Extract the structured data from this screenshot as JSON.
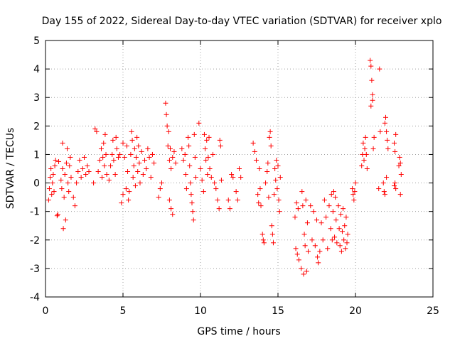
{
  "chart_data": {
    "type": "scatter",
    "title": "Day 155 of 2022, Sidereal Day-to-day VTEC variation (SDTVAR) for receiver xplo",
    "xlabel": "GPS time / hours",
    "ylabel": "SDTVAR / TECUs",
    "xlim": [
      0,
      25
    ],
    "ylim": [
      -4,
      5
    ],
    "xticks": [
      0,
      5,
      10,
      15,
      20,
      25
    ],
    "yticks": [
      -4,
      -3,
      -2,
      -1,
      0,
      1,
      2,
      3,
      4,
      5
    ],
    "xtick_labels": [
      "0",
      "5",
      "10",
      "15",
      "20",
      "25"
    ],
    "ytick_labels": [
      "-4",
      "-3",
      "-2",
      "-1",
      "0",
      "1",
      "2",
      "3",
      "4",
      "5"
    ],
    "grid": true,
    "marker": "+",
    "marker_color": "#ff0000",
    "series": [
      {
        "name": "SDTVAR",
        "points": [
          [
            0.2,
            -0.6
          ],
          [
            0.25,
            -0.2
          ],
          [
            0.3,
            0.2
          ],
          [
            0.35,
            0.5
          ],
          [
            0.4,
            -0.4
          ],
          [
            0.45,
            0.0
          ],
          [
            0.5,
            0.3
          ],
          [
            0.55,
            -0.3
          ],
          [
            0.6,
            0.6
          ],
          [
            0.65,
            0.8
          ],
          [
            0.75,
            -1.15
          ],
          [
            0.8,
            -1.1
          ],
          [
            0.85,
            0.75
          ],
          [
            1.0,
            0.1
          ],
          [
            1.05,
            -0.2
          ],
          [
            1.1,
            0.5
          ],
          [
            1.1,
            1.4
          ],
          [
            1.15,
            -1.6
          ],
          [
            1.2,
            -0.5
          ],
          [
            1.25,
            0.3
          ],
          [
            1.3,
            -1.3
          ],
          [
            1.35,
            0.7
          ],
          [
            1.4,
            1.2
          ],
          [
            1.45,
            0.0
          ],
          [
            1.5,
            -0.3
          ],
          [
            1.55,
            0.6
          ],
          [
            1.6,
            0.9
          ],
          [
            1.65,
            0.2
          ],
          [
            1.8,
            -0.5
          ],
          [
            1.9,
            -0.8
          ],
          [
            2.0,
            0.0
          ],
          [
            2.1,
            0.4
          ],
          [
            2.2,
            0.8
          ],
          [
            2.3,
            0.2
          ],
          [
            2.4,
            0.5
          ],
          [
            2.5,
            0.9
          ],
          [
            2.6,
            0.3
          ],
          [
            2.7,
            0.6
          ],
          [
            2.8,
            0.4
          ],
          [
            3.1,
            0.0
          ],
          [
            3.2,
            1.9
          ],
          [
            3.3,
            1.8
          ],
          [
            3.4,
            0.4
          ],
          [
            3.5,
            0.8
          ],
          [
            3.6,
            1.2
          ],
          [
            3.65,
            0.2
          ],
          [
            3.7,
            0.9
          ],
          [
            3.75,
            1.4
          ],
          [
            3.8,
            0.6
          ],
          [
            3.85,
            1.7
          ],
          [
            3.9,
            1.0
          ],
          [
            3.95,
            0.3
          ],
          [
            4.1,
            0.1
          ],
          [
            4.2,
            0.6
          ],
          [
            4.3,
            1.0
          ],
          [
            4.35,
            1.5
          ],
          [
            4.4,
            0.8
          ],
          [
            4.5,
            0.3
          ],
          [
            4.55,
            1.6
          ],
          [
            4.6,
            1.2
          ],
          [
            4.7,
            0.9
          ],
          [
            4.8,
            1.0
          ],
          [
            4.9,
            -0.7
          ],
          [
            5.0,
            -0.4
          ],
          [
            5.0,
            1.4
          ],
          [
            5.1,
            0.9
          ],
          [
            5.2,
            -0.2
          ],
          [
            5.25,
            1.3
          ],
          [
            5.3,
            0.4
          ],
          [
            5.35,
            -0.6
          ],
          [
            5.4,
            -0.3
          ],
          [
            5.5,
            1.0
          ],
          [
            5.55,
            1.8
          ],
          [
            5.6,
            1.5
          ],
          [
            5.65,
            0.2
          ],
          [
            5.7,
            0.6
          ],
          [
            5.75,
            1.2
          ],
          [
            5.8,
            -0.1
          ],
          [
            5.85,
            0.9
          ],
          [
            5.9,
            1.6
          ],
          [
            5.95,
            0.4
          ],
          [
            6.0,
            1.3
          ],
          [
            6.05,
            0.7
          ],
          [
            6.1,
            0.0
          ],
          [
            6.2,
            1.1
          ],
          [
            6.3,
            0.3
          ],
          [
            6.4,
            0.8
          ],
          [
            6.5,
            0.5
          ],
          [
            6.6,
            1.2
          ],
          [
            6.7,
            0.9
          ],
          [
            6.8,
            0.2
          ],
          [
            6.9,
            1.0
          ],
          [
            7.0,
            0.7
          ],
          [
            7.3,
            -0.5
          ],
          [
            7.4,
            -0.2
          ],
          [
            7.5,
            0.0
          ],
          [
            7.75,
            2.8
          ],
          [
            7.8,
            2.4
          ],
          [
            7.85,
            2.0
          ],
          [
            7.9,
            1.3
          ],
          [
            7.95,
            1.8
          ],
          [
            8.0,
            0.8
          ],
          [
            8.05,
            1.2
          ],
          [
            8.1,
            0.5
          ],
          [
            8.2,
            0.9
          ],
          [
            8.3,
            1.1
          ],
          [
            8.4,
            0.7
          ],
          [
            8.0,
            -0.6
          ],
          [
            8.1,
            -0.9
          ],
          [
            8.2,
            -1.1
          ],
          [
            8.8,
            1.2
          ],
          [
            8.9,
            0.8
          ],
          [
            9.0,
            1.0
          ],
          [
            9.05,
            0.3
          ],
          [
            9.1,
            -0.2
          ],
          [
            9.2,
            1.6
          ],
          [
            9.25,
            1.3
          ],
          [
            9.3,
            0.6
          ],
          [
            9.35,
            0.0
          ],
          [
            9.4,
            -0.4
          ],
          [
            9.45,
            -0.7
          ],
          [
            9.5,
            -1.0
          ],
          [
            9.55,
            -1.3
          ],
          [
            9.6,
            1.7
          ],
          [
            9.65,
            0.9
          ],
          [
            9.7,
            0.2
          ],
          [
            9.9,
            2.1
          ],
          [
            10.0,
            0.5
          ],
          [
            10.1,
            0.1
          ],
          [
            10.2,
            -0.3
          ],
          [
            10.25,
            1.7
          ],
          [
            10.3,
            1.2
          ],
          [
            10.35,
            0.8
          ],
          [
            10.4,
            1.5
          ],
          [
            10.45,
            0.3
          ],
          [
            10.5,
            0.9
          ],
          [
            10.55,
            1.6
          ],
          [
            10.6,
            0.5
          ],
          [
            10.7,
            0.2
          ],
          [
            10.8,
            1.0
          ],
          [
            10.9,
            0.0
          ],
          [
            11.0,
            -0.2
          ],
          [
            11.1,
            -0.6
          ],
          [
            11.2,
            -0.9
          ],
          [
            11.25,
            1.5
          ],
          [
            11.3,
            1.3
          ],
          [
            11.35,
            0.1
          ],
          [
            11.8,
            -0.6
          ],
          [
            11.9,
            -0.9
          ],
          [
            12.0,
            0.3
          ],
          [
            12.1,
            0.2
          ],
          [
            12.3,
            -0.3
          ],
          [
            12.4,
            -0.6
          ],
          [
            12.5,
            0.5
          ],
          [
            12.6,
            0.2
          ],
          [
            13.4,
            1.4
          ],
          [
            13.5,
            1.1
          ],
          [
            13.6,
            0.8
          ],
          [
            13.7,
            -0.4
          ],
          [
            13.75,
            -0.7
          ],
          [
            13.8,
            0.5
          ],
          [
            13.85,
            -0.2
          ],
          [
            13.9,
            -0.8
          ],
          [
            14.0,
            -1.8
          ],
          [
            14.05,
            -2.0
          ],
          [
            14.1,
            -2.1
          ],
          [
            14.2,
            0.0
          ],
          [
            14.3,
            0.4
          ],
          [
            14.35,
            0.7
          ],
          [
            14.4,
            -0.5
          ],
          [
            14.45,
            1.6
          ],
          [
            14.5,
            1.8
          ],
          [
            14.55,
            1.3
          ],
          [
            14.6,
            -1.5
          ],
          [
            14.65,
            -1.8
          ],
          [
            14.7,
            -2.1
          ],
          [
            14.75,
            -0.4
          ],
          [
            14.8,
            0.5
          ],
          [
            14.85,
            0.1
          ],
          [
            14.9,
            0.8
          ],
          [
            14.95,
            -0.2
          ],
          [
            15.0,
            0.6
          ],
          [
            15.05,
            -0.6
          ],
          [
            15.1,
            -1.0
          ],
          [
            15.15,
            0.2
          ],
          [
            16.1,
            -1.2
          ],
          [
            16.15,
            -2.3
          ],
          [
            16.2,
            -0.7
          ],
          [
            16.25,
            -2.5
          ],
          [
            16.3,
            -0.9
          ],
          [
            16.35,
            -2.7
          ],
          [
            16.5,
            -3.0
          ],
          [
            16.55,
            -0.3
          ],
          [
            16.6,
            -0.8
          ],
          [
            16.65,
            -3.2
          ],
          [
            16.7,
            -1.8
          ],
          [
            16.75,
            -2.2
          ],
          [
            16.8,
            -0.6
          ],
          [
            16.85,
            -3.1
          ],
          [
            16.9,
            -1.4
          ],
          [
            16.95,
            -2.4
          ],
          [
            17.1,
            -0.8
          ],
          [
            17.2,
            -2.0
          ],
          [
            17.3,
            -1.0
          ],
          [
            17.4,
            -2.2
          ],
          [
            17.5,
            -1.3
          ],
          [
            17.55,
            -2.6
          ],
          [
            17.6,
            -2.8
          ],
          [
            17.7,
            -2.4
          ],
          [
            17.8,
            -1.4
          ],
          [
            17.9,
            -2.0
          ],
          [
            18.0,
            -0.6
          ],
          [
            18.1,
            -1.2
          ],
          [
            18.2,
            -2.3
          ],
          [
            18.3,
            -0.8
          ],
          [
            18.4,
            -1.6
          ],
          [
            18.45,
            -0.4
          ],
          [
            18.5,
            -2.0
          ],
          [
            18.55,
            -1.0
          ],
          [
            18.6,
            -0.3
          ],
          [
            18.65,
            -1.9
          ],
          [
            18.7,
            -0.5
          ],
          [
            18.75,
            -1.3
          ],
          [
            18.8,
            -2.1
          ],
          [
            18.9,
            -0.8
          ],
          [
            18.95,
            -1.6
          ],
          [
            19.0,
            -2.2
          ],
          [
            19.05,
            -1.1
          ],
          [
            19.1,
            -2.4
          ],
          [
            19.15,
            -1.7
          ],
          [
            19.2,
            -0.9
          ],
          [
            19.25,
            -2.0
          ],
          [
            19.3,
            -1.5
          ],
          [
            19.35,
            -2.3
          ],
          [
            19.4,
            -1.2
          ],
          [
            19.45,
            -2.1
          ],
          [
            19.5,
            -1.8
          ],
          [
            19.8,
            -0.2
          ],
          [
            19.85,
            -0.4
          ],
          [
            19.9,
            -0.6
          ],
          [
            19.95,
            -0.3
          ],
          [
            20.0,
            0.0
          ],
          [
            20.4,
            0.6
          ],
          [
            20.45,
            1.0
          ],
          [
            20.5,
            1.4
          ],
          [
            20.55,
            0.8
          ],
          [
            20.6,
            1.2
          ],
          [
            20.65,
            1.6
          ],
          [
            20.7,
            1.0
          ],
          [
            20.75,
            0.5
          ],
          [
            20.95,
            4.3
          ],
          [
            21.0,
            4.1
          ],
          [
            21.05,
            3.6
          ],
          [
            21.1,
            3.1
          ],
          [
            21.0,
            2.7
          ],
          [
            21.1,
            2.9
          ],
          [
            21.15,
            1.2
          ],
          [
            21.2,
            1.6
          ],
          [
            21.5,
            -0.2
          ],
          [
            21.55,
            4.0
          ],
          [
            21.6,
            1.8
          ],
          [
            21.8,
            0.0
          ],
          [
            21.85,
            -0.3
          ],
          [
            21.9,
            -0.4
          ],
          [
            21.9,
            2.1
          ],
          [
            21.95,
            2.3
          ],
          [
            22.0,
            1.8
          ],
          [
            22.05,
            1.5
          ],
          [
            22.0,
            0.2
          ],
          [
            22.1,
            1.2
          ],
          [
            22.5,
            -0.1
          ],
          [
            22.55,
            0.0
          ],
          [
            22.5,
            1.4
          ],
          [
            22.6,
            1.7
          ],
          [
            22.55,
            1.1
          ],
          [
            22.6,
            -0.2
          ],
          [
            22.8,
            0.6
          ],
          [
            22.85,
            0.9
          ],
          [
            22.9,
            0.7
          ],
          [
            22.95,
            0.3
          ],
          [
            22.9,
            -0.4
          ]
        ]
      }
    ]
  }
}
